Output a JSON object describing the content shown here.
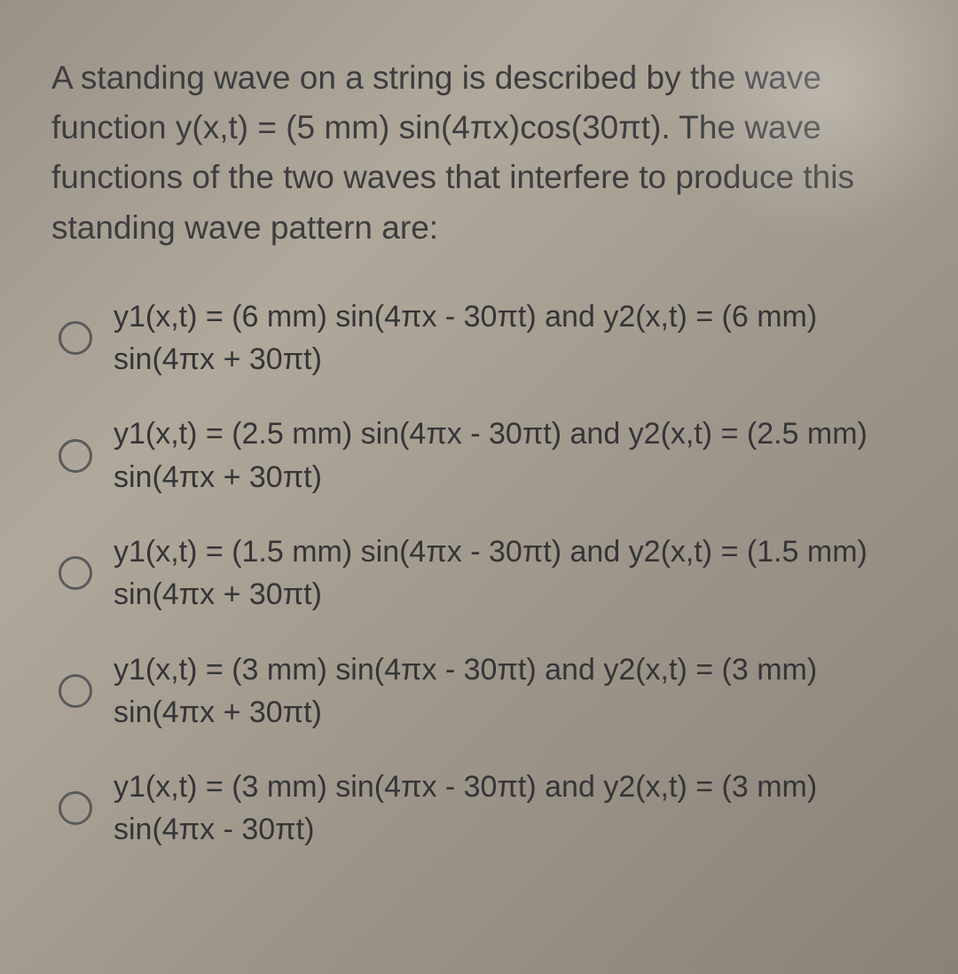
{
  "colors": {
    "text": "#3d3d40",
    "option_text": "#353538",
    "radio_border": "#5a5a5c",
    "bg_gradient_start": "#9a9288",
    "bg_gradient_end": "#8a8278"
  },
  "typography": {
    "stem_fontsize": 37,
    "option_fontsize": 34,
    "font_family": "Arial"
  },
  "question": {
    "stem": "A standing wave on a string is described by the wave function y(x,t) = (5 mm) sin(4πx)cos(30πt). The wave functions of the two waves that interfere to produce this standing wave pattern are:"
  },
  "options": [
    {
      "text": "y1(x,t) = (6 mm) sin(4πx - 30πt) and y2(x,t) = (6 mm) sin(4πx + 30πt)"
    },
    {
      "text": "y1(x,t) = (2.5 mm) sin(4πx - 30πt) and y2(x,t) = (2.5 mm) sin(4πx + 30πt)"
    },
    {
      "text": "y1(x,t) = (1.5 mm) sin(4πx - 30πt) and y2(x,t) = (1.5 mm) sin(4πx + 30πt)"
    },
    {
      "text": "y1(x,t) = (3 mm) sin(4πx - 30πt) and y2(x,t) = (3 mm) sin(4πx + 30πt)"
    },
    {
      "text": "y1(x,t) = (3 mm) sin(4πx - 30πt) and y2(x,t) = (3 mm) sin(4πx - 30πt)"
    }
  ]
}
